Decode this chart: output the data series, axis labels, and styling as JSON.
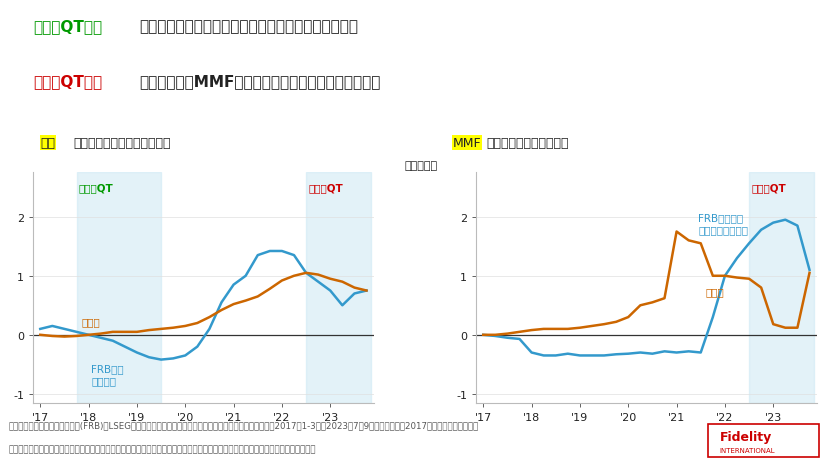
{
  "title_line1_green": "前回のQT局面",
  "title_line1_rest": "では、【左】銀行の国債保有が増え、マネーが減少。",
  "title_line2_red": "今回のQT局面",
  "title_line2_rest": "では、【右】MMFの国債保有が増え、マネーが減少。",
  "ylabel": "（兆ドル）",
  "bg_color": "#ffffff",
  "shade_color": "#cce8f4",
  "line_blue": "#3399cc",
  "line_orange": "#cc6600",
  "zero_line_color": "#333333",
  "left_blue_x": [
    2017.0,
    2017.25,
    2017.5,
    2017.75,
    2018.0,
    2018.25,
    2018.5,
    2018.75,
    2019.0,
    2019.25,
    2019.5,
    2019.75,
    2020.0,
    2020.25,
    2020.5,
    2020.75,
    2021.0,
    2021.25,
    2021.5,
    2021.75,
    2022.0,
    2022.25,
    2022.5,
    2022.75,
    2023.0,
    2023.25,
    2023.5,
    2023.75
  ],
  "left_blue_y": [
    0.1,
    0.15,
    0.1,
    0.05,
    0.0,
    -0.05,
    -0.1,
    -0.2,
    -0.3,
    -0.38,
    -0.42,
    -0.4,
    -0.35,
    -0.2,
    0.1,
    0.55,
    0.85,
    1.0,
    1.35,
    1.42,
    1.42,
    1.35,
    1.05,
    0.9,
    0.75,
    0.5,
    0.7,
    0.75
  ],
  "left_orange_x": [
    2017.0,
    2017.25,
    2017.5,
    2017.75,
    2018.0,
    2018.25,
    2018.5,
    2018.75,
    2019.0,
    2019.25,
    2019.5,
    2019.75,
    2020.0,
    2020.25,
    2020.5,
    2020.75,
    2021.0,
    2021.25,
    2021.5,
    2021.75,
    2022.0,
    2022.25,
    2022.5,
    2022.75,
    2023.0,
    2023.25,
    2023.5,
    2023.75
  ],
  "left_orange_y": [
    0.0,
    -0.02,
    -0.03,
    -0.02,
    0.0,
    0.02,
    0.05,
    0.05,
    0.05,
    0.08,
    0.1,
    0.12,
    0.15,
    0.2,
    0.3,
    0.42,
    0.52,
    0.58,
    0.65,
    0.78,
    0.92,
    1.0,
    1.05,
    1.02,
    0.95,
    0.9,
    0.8,
    0.75
  ],
  "right_blue_x": [
    2017.0,
    2017.25,
    2017.5,
    2017.75,
    2018.0,
    2018.25,
    2018.5,
    2018.75,
    2019.0,
    2019.25,
    2019.5,
    2019.75,
    2020.0,
    2020.25,
    2020.5,
    2020.75,
    2021.0,
    2021.25,
    2021.5,
    2021.75,
    2022.0,
    2022.25,
    2022.5,
    2022.75,
    2023.0,
    2023.25,
    2023.5,
    2023.75
  ],
  "right_blue_y": [
    0.0,
    -0.02,
    -0.05,
    -0.07,
    -0.3,
    -0.35,
    -0.35,
    -0.32,
    -0.35,
    -0.35,
    -0.35,
    -0.33,
    -0.32,
    -0.3,
    -0.32,
    -0.28,
    -0.3,
    -0.28,
    -0.3,
    0.3,
    1.0,
    1.3,
    1.55,
    1.78,
    1.9,
    1.95,
    1.85,
    1.1
  ],
  "right_orange_x": [
    2017.0,
    2017.25,
    2017.5,
    2017.75,
    2018.0,
    2018.25,
    2018.5,
    2018.75,
    2019.0,
    2019.25,
    2019.5,
    2019.75,
    2020.0,
    2020.25,
    2020.5,
    2020.75,
    2021.0,
    2021.25,
    2021.5,
    2021.75,
    2022.0,
    2022.25,
    2022.5,
    2022.75,
    2023.0,
    2023.25,
    2023.5,
    2023.75
  ],
  "right_orange_y": [
    0.0,
    0.0,
    0.02,
    0.05,
    0.08,
    0.1,
    0.1,
    0.1,
    0.12,
    0.15,
    0.18,
    0.22,
    0.3,
    0.5,
    0.55,
    0.62,
    1.75,
    1.6,
    1.55,
    1.0,
    1.0,
    0.97,
    0.95,
    0.8,
    0.18,
    0.12,
    0.12,
    1.05
  ],
  "xlim": [
    2016.85,
    2023.9
  ],
  "ylim": [
    -1.15,
    2.75
  ],
  "xticks": [
    2017,
    2018,
    2019,
    2020,
    2021,
    2022,
    2023
  ],
  "xtick_labels": [
    "'17",
    "'18",
    "'19",
    "'20",
    "'21",
    "'22",
    "'23"
  ],
  "yticks": [
    -1,
    0,
    1,
    2
  ],
  "source_text": "（出所）米連邦準備制度理事会(FRB)、LSEG、フィデリティ・インスティテュート。（注）データの期間：2017年1-3月～2023年7－9月、四半期次。2017年以降の累積フロー。",
  "disclaimer_text": "あらゆる記述やチャートは、例示目的もしくは過去の実績であり、将来の傾向、数値等を保証もしくは示唆するものではありません。",
  "fidelity_text": "Fidelity",
  "fidelity_sub": "INTERNATIONAL",
  "green_color": "#009900",
  "red_color": "#cc0000",
  "yellow_highlight": "#ffff00",
  "gray_text": "#555555",
  "dark_text": "#222222"
}
